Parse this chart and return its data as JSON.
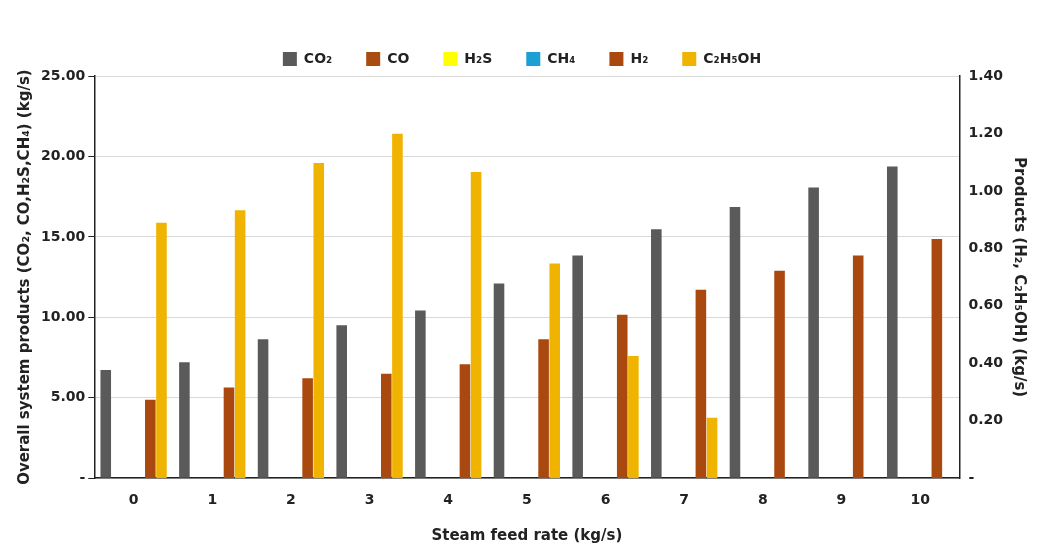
{
  "chart_data": {
    "type": "bar",
    "xlabel": "Steam feed rate (kg/s)",
    "ylabel": "Overall system products (CO₂, CO,H₂S,CH₄) (kg/s)",
    "y2label": "Products (H₂, C₂H₅OH) (kg/s)",
    "categories": [
      "0",
      "1",
      "2",
      "3",
      "4",
      "5",
      "6",
      "7",
      "8",
      "9",
      "10"
    ],
    "series": [
      {
        "name": "CO₂",
        "color": "#5a5a5a",
        "values": [
          6.73,
          7.2,
          8.64,
          9.5,
          10.43,
          12.1,
          13.84,
          15.48,
          16.85,
          18.07,
          19.37
        ]
      },
      {
        "name": "CO",
        "color": "#a84c12",
        "values": [
          0,
          0,
          0,
          0,
          0,
          0,
          0,
          0,
          0,
          0,
          0
        ]
      },
      {
        "name": "H₂S",
        "color": "#ffff00",
        "values": [
          0,
          0,
          0,
          0,
          0,
          0,
          0,
          0,
          0,
          0,
          0
        ]
      },
      {
        "name": "CH₄",
        "color": "#1b9fd4",
        "values": [
          0,
          0,
          0,
          0,
          0,
          0,
          0,
          0,
          0,
          0,
          0
        ]
      },
      {
        "name": "H₂",
        "color": "#a9490f",
        "axis": "y2",
        "values": [
          0.273,
          0.316,
          0.348,
          0.364,
          0.397,
          0.484,
          0.569,
          0.656,
          0.722,
          0.775,
          0.833
        ]
      },
      {
        "name": "C₂H₅OH",
        "color": "#efb300",
        "axis": "y2",
        "values": [
          0.889,
          0.933,
          1.097,
          1.199,
          1.066,
          0.747,
          0.425,
          0.21,
          0,
          0,
          0
        ]
      }
    ],
    "ylim": [
      0,
      25
    ],
    "yticks": [
      {
        "value": 0,
        "label": "-"
      },
      {
        "value": 5,
        "label": "5.00"
      },
      {
        "value": 10,
        "label": "10.00"
      },
      {
        "value": 15,
        "label": "15.00"
      },
      {
        "value": 20,
        "label": "20.00"
      },
      {
        "value": 25,
        "label": "25.00"
      }
    ],
    "y2lim": [
      0,
      1.4
    ],
    "y2ticks": [
      {
        "value": 0,
        "label": "-"
      },
      {
        "value": 0.2,
        "label": "0.20"
      },
      {
        "value": 0.4,
        "label": "0.40"
      },
      {
        "value": 0.6,
        "label": "0.60"
      },
      {
        "value": 0.8,
        "label": "0.80"
      },
      {
        "value": 1,
        "label": "1.00"
      },
      {
        "value": 1.2,
        "label": "1.20"
      },
      {
        "value": 1.4,
        "label": "1.40"
      }
    ],
    "grid": "y",
    "legend": "top"
  }
}
